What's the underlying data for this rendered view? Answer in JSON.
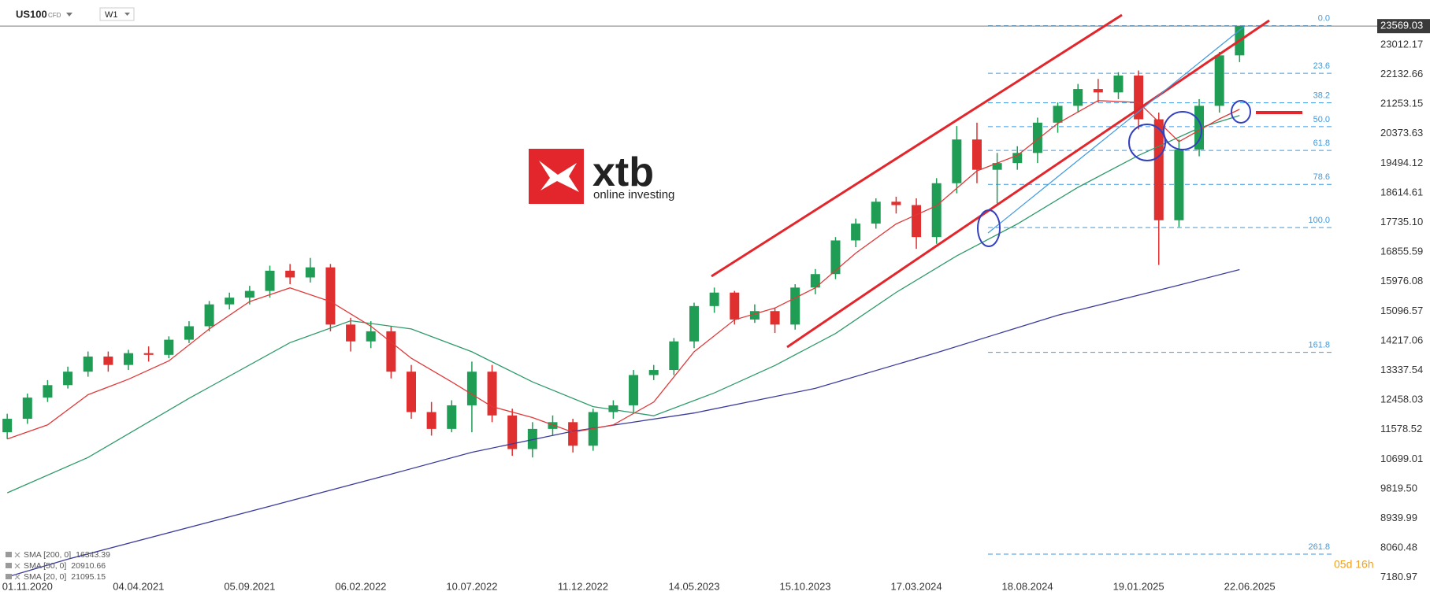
{
  "header": {
    "symbol": "US100",
    "market": "CFD",
    "interval": "W1"
  },
  "logo": {
    "name": "xtb",
    "tagline": "online investing"
  },
  "chart_data": {
    "type": "candlestick",
    "xlim": [
      "24.09.2020",
      "07.12.2025"
    ],
    "xticks": [
      "01.11.2020",
      "04.04.2021",
      "05.09.2021",
      "06.02.2022",
      "10.07.2022",
      "11.12.2022",
      "14.05.2023",
      "15.10.2023",
      "17.03.2024",
      "18.08.2024",
      "19.01.2025",
      "22.06.2025"
    ],
    "ylim": [
      7036,
      24345
    ],
    "yticks": [
      23012.17,
      22132.66,
      21253.15,
      20373.63,
      19494.12,
      18614.61,
      {
        "value": 17735.1,
        "label": "17735.10"
      },
      16855.59,
      15976.08,
      15096.57,
      14217.06,
      13337.54,
      12458.03,
      11578.52,
      10699.01,
      {
        "value": 9819.5,
        "label": "9819.50"
      },
      8939.99,
      8060.48,
      7180.97
    ],
    "up_color": "#1f9d55",
    "down_color": "#e02f2f",
    "x": [
      "04.10.2020",
      "01.11.2020",
      "29.11.2020",
      "27.12.2020",
      "24.01.2021",
      "21.02.2021",
      "21.03.2021",
      "18.04.2021",
      "16.05.2021",
      "13.06.2021",
      "11.07.2021",
      "08.08.2021",
      "05.09.2021",
      "03.10.2021",
      "31.10.2021",
      "28.11.2021",
      "26.12.2021",
      "23.01.2022",
      "20.02.2022",
      "20.03.2022",
      "17.04.2022",
      "15.05.2022",
      "12.06.2022",
      "10.07.2022",
      "07.08.2022",
      "04.09.2022",
      "02.10.2022",
      "30.10.2022",
      "27.11.2022",
      "25.12.2022",
      "22.01.2023",
      "19.02.2023",
      "19.03.2023",
      "16.04.2023",
      "14.05.2023",
      "11.06.2023",
      "09.07.2023",
      "06.08.2023",
      "03.09.2023",
      "01.10.2023",
      "29.10.2023",
      "26.11.2023",
      "24.12.2023",
      "21.01.2024",
      "18.02.2024",
      "17.03.2024",
      "14.04.2024",
      "12.05.2024",
      "09.06.2024",
      "07.07.2024",
      "04.08.2024",
      "01.09.2024",
      "29.09.2024",
      "27.10.2024",
      "24.11.2024",
      "22.12.2024",
      "19.01.2025",
      "16.02.2025",
      "16.03.2025",
      "13.04.2025",
      "11.05.2025",
      "08.06.2025"
    ],
    "open": [
      11500,
      11900,
      12530,
      12900,
      13300,
      13750,
      13500,
      13850,
      13800,
      14250,
      14650,
      15300,
      15500,
      15700,
      16300,
      16100,
      16400,
      14700,
      14200,
      14500,
      13300,
      12100,
      11600,
      12300,
      13300,
      12000,
      11000,
      11600,
      11800,
      11100,
      12100,
      12300,
      13200,
      13350,
      14200,
      15250,
      15650,
      14850,
      15100,
      14700,
      15800,
      16200,
      17200,
      17700,
      18350,
      18250,
      17300,
      18900,
      20200,
      19300,
      19500,
      19800,
      20700,
      21200,
      21700,
      21600,
      22100,
      20800,
      17800,
      19900,
      21200,
      22700
    ],
    "high": [
      12050,
      12650,
      13050,
      13450,
      13900,
      13900,
      13950,
      14050,
      14350,
      14800,
      15400,
      15650,
      15850,
      16450,
      16500,
      16680,
      16500,
      14900,
      14800,
      14650,
      13500,
      12400,
      12450,
      13600,
      13500,
      12200,
      11800,
      12000,
      11900,
      12200,
      12450,
      13350,
      13500,
      14300,
      15350,
      15800,
      15700,
      15300,
      15200,
      15900,
      16350,
      17300,
      17850,
      18450,
      18500,
      18450,
      19050,
      20600,
      20700,
      19800,
      20000,
      20850,
      21300,
      21850,
      22000,
      22200,
      22250,
      21000,
      20200,
      21400,
      22800,
      23582
    ],
    "low": [
      11300,
      11750,
      12400,
      12800,
      13150,
      13300,
      13350,
      13600,
      13700,
      14150,
      14500,
      15150,
      15300,
      15500,
      15900,
      15950,
      14500,
      13900,
      14000,
      13100,
      11900,
      11400,
      11500,
      11500,
      11800,
      10800,
      10750,
      11400,
      10900,
      10950,
      11900,
      12100,
      13050,
      13200,
      14000,
      15050,
      14700,
      14750,
      14450,
      14550,
      15600,
      16050,
      17000,
      17550,
      18000,
      16950,
      17100,
      18600,
      18900,
      18300,
      19300,
      19500,
      20400,
      21000,
      21300,
      21400,
      20500,
      16470,
      17600,
      19700,
      21000,
      22500
    ],
    "close": [
      11900,
      12530,
      12900,
      13300,
      13750,
      13500,
      13850,
      13800,
      14250,
      14650,
      15300,
      15500,
      15700,
      16300,
      16100,
      16400,
      14700,
      14200,
      14500,
      13300,
      12100,
      11600,
      12300,
      13300,
      12000,
      11000,
      11600,
      11800,
      11100,
      12100,
      12300,
      13200,
      13350,
      14200,
      15250,
      15650,
      14850,
      15100,
      14700,
      15800,
      16200,
      17200,
      17700,
      18350,
      18250,
      17300,
      18900,
      20200,
      19300,
      19500,
      19800,
      20700,
      21200,
      21700,
      21600,
      22100,
      20800,
      17800,
      19900,
      21200,
      22700,
      23569
    ],
    "last_price": 23569.03,
    "overlays": [
      {
        "name": "SMA [200, 0]",
        "legend_value": 16343.39,
        "color": "#3b3b9c",
        "x": [
          "04.10.2020",
          "27.12.2020",
          "03.10.2021",
          "20.03.2022",
          "10.07.2022",
          "27.11.2022",
          "14.05.2023",
          "29.10.2023",
          "14.04.2024",
          "29.09.2024",
          "16.03.2025",
          "08.06.2025"
        ],
        "values": [
          7200,
          7728,
          9303,
          10254,
          10905,
          11529,
          12072,
          12805,
          13864,
          14977,
          15873,
          16334
        ]
      },
      {
        "name": "SMA [50, 0]",
        "legend_value": 20910.66,
        "color": "#2e9a6a",
        "x": [
          "04.10.2020",
          "24.01.2021",
          "13.06.2021",
          "31.10.2021",
          "23.01.2022",
          "17.04.2022",
          "10.07.2022",
          "02.10.2022",
          "25.12.2022",
          "19.03.2023",
          "11.06.2023",
          "03.09.2023",
          "26.11.2023",
          "18.02.2024",
          "12.05.2024",
          "04.08.2024",
          "27.10.2024",
          "19.01.2025",
          "13.04.2025",
          "08.06.2025"
        ],
        "values": [
          9700,
          10750,
          12506,
          14162,
          14814,
          14570,
          13891,
          12995,
          12262,
          11991,
          12669,
          13484,
          14434,
          15655,
          16741,
          17691,
          18777,
          19727,
          20541,
          20911
        ]
      },
      {
        "name": "SMA [20, 0]",
        "legend_value": 21095.15,
        "color": "#e0393a",
        "x": [
          "04.10.2020",
          "29.11.2020",
          "24.01.2021",
          "21.03.2021",
          "16.05.2021",
          "11.07.2021",
          "05.09.2021",
          "31.10.2021",
          "26.12.2021",
          "20.02.2022",
          "17.04.2022",
          "12.06.2022",
          "07.08.2022",
          "02.10.2022",
          "27.11.2022",
          "22.01.2023",
          "19.03.2023",
          "14.05.2023",
          "09.07.2023",
          "03.09.2023",
          "29.10.2023",
          "24.12.2023",
          "18.02.2024",
          "14.04.2024",
          "09.06.2024",
          "04.08.2024",
          "29.09.2024",
          "24.11.2024",
          "19.01.2025",
          "16.03.2025",
          "11.05.2025",
          "08.06.2025"
        ],
        "values": [
          11300,
          11719,
          12615,
          13076,
          13620,
          14570,
          15383,
          15790,
          15383,
          14651,
          13701,
          12995,
          12262,
          11937,
          11502,
          11719,
          12398,
          13891,
          14841,
          15193,
          15790,
          16822,
          17691,
          18234,
          19266,
          19727,
          20677,
          21356,
          21302,
          20134,
          20813,
          21095
        ]
      }
    ],
    "fibonacci": {
      "from": 17583,
      "to": 23582,
      "color": "#3d9ae0",
      "levels": [
        {
          "value": 0,
          "label": "0.0"
        },
        23.6,
        38.2,
        {
          "value": 50,
          "label": "50.0"
        },
        61.8,
        78.6,
        {
          "value": 100,
          "label": "100.0"
        },
        161.8,
        261.8
      ]
    },
    "countdown": "05d 16h"
  }
}
